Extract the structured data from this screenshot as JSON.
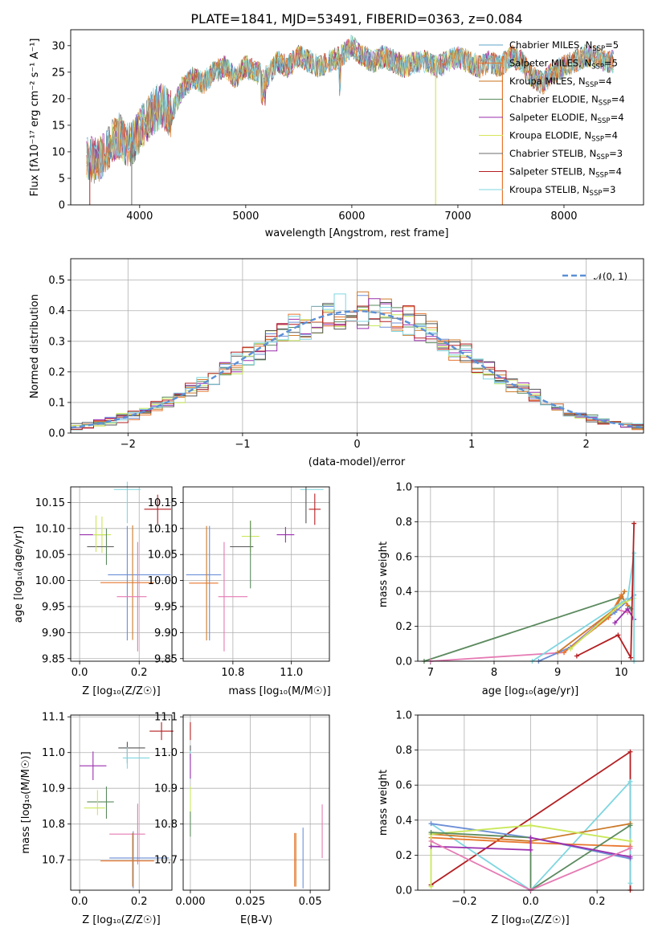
{
  "title": "PLATE=1841, MJD=53491, FIBERID=0363, z=0.084",
  "series_colors": [
    "#5fa3cb",
    "#e8762e",
    "#c9711b",
    "#5b8a5e",
    "#9b2fae",
    "#d7e65a",
    "#6b6b6b",
    "#b41f22",
    "#7fd6e0"
  ],
  "panel_colors": [
    "#6c8fd6",
    "#e8762e",
    "#cc7a2a",
    "#5b8a5e",
    "#9b2fae",
    "#c9e85a",
    "#555555",
    "#b41f22",
    "#7fd6e0",
    "#e57ab3"
  ],
  "legend": {
    "labels": [
      "Chabrier MILES, N",
      "Salpeter MILES, N",
      "Kroupa MILES, N",
      "Chabrier ELODIE, N",
      "Salpeter ELODIE, N",
      "Kroupa ELODIE, N",
      "Chabrier STELIB, N",
      "Salpeter STELIB, N",
      "Kroupa STELIB, N"
    ],
    "sub": "SSP",
    "counts": [
      "5",
      "5",
      "4",
      "4",
      "4",
      "4",
      "3",
      "4",
      "3"
    ]
  },
  "chart_data": [
    {
      "id": "spectrum",
      "type": "line",
      "title": "PLATE=1841, MJD=53491, FIBERID=0363, z=0.084",
      "xlabel": "wavelength [Angstrom, rest frame]",
      "ylabel": "Flux [fλ10⁻¹⁷ erg cm⁻² s⁻¹ A⁻¹]",
      "xlim": [
        3350,
        8750
      ],
      "ylim": [
        0,
        33
      ],
      "xticks": [
        4000,
        5000,
        6000,
        7000,
        8000
      ],
      "yticks": [
        0,
        5,
        10,
        15,
        20,
        25,
        30
      ],
      "x": [
        3500,
        3600,
        3700,
        3800,
        3900,
        4000,
        4100,
        4200,
        4300,
        4400,
        4500,
        4600,
        4700,
        4800,
        4900,
        5000,
        5100,
        5200,
        5300,
        5400,
        5500,
        5600,
        5700,
        5800,
        5900,
        6000,
        6100,
        6200,
        6300,
        6400,
        6500,
        6600,
        6700,
        6800,
        6900,
        7000,
        7100,
        7200,
        7300,
        7400,
        7500,
        7600,
        7700,
        7800,
        7900,
        8000,
        8100,
        8200,
        8300,
        8400,
        8500
      ],
      "y": [
        9,
        8,
        11,
        13,
        11,
        14,
        17,
        19,
        17,
        22,
        24,
        23,
        25,
        26,
        24,
        26,
        25,
        24,
        27,
        26,
        28,
        27,
        26,
        27,
        28,
        30,
        28,
        27,
        28,
        27,
        26,
        27,
        27,
        26,
        27,
        28,
        27,
        26,
        27,
        26,
        28,
        27,
        24,
        23,
        25,
        26,
        27,
        28,
        28,
        27,
        27
      ]
    },
    {
      "id": "residuals",
      "type": "histogram",
      "xlabel": "(data-model)/error",
      "ylabel": "Normed distribution",
      "xlim": [
        -2.5,
        2.5
      ],
      "ylim": [
        0,
        0.57
      ],
      "xticks": [
        -2,
        -1,
        0,
        1,
        2
      ],
      "yticks": [
        0.0,
        0.1,
        0.2,
        0.3,
        0.4,
        0.5
      ],
      "legend": "𝒩(0, 1)",
      "curve": "normal(0,1)"
    },
    {
      "id": "age-vs-Z",
      "type": "errorbar",
      "xlabel": "Z [log₁₀(Z/Z☉)]",
      "ylabel": "age  [log₁₀(age/yr)]",
      "xlim": [
        -0.03,
        0.31
      ],
      "ylim": [
        9.845,
        10.18
      ],
      "xticks": [
        0.0,
        0.2
      ],
      "yticks": [
        9.85,
        9.9,
        9.95,
        10.0,
        10.05,
        10.1,
        10.15
      ],
      "points": [
        {
          "x": 0.155,
          "y": 10.175,
          "xe": 0.045,
          "ye": 0.0
        },
        {
          "x": 0.26,
          "y": 10.137,
          "xe": 0.045,
          "ye": 0.028
        },
        {
          "x": 0.045,
          "y": 10.088,
          "xe": 0.045,
          "ye": 0.015
        },
        {
          "x": 0.07,
          "y": 10.085,
          "xe": 0.045,
          "ye": 0.035
        },
        {
          "x": 0.07,
          "y": 10.065,
          "xe": 0.045,
          "ye": 0.0
        },
        {
          "x": 0.09,
          "y": 10.065,
          "xe": 0.0,
          "ye": 0.035
        },
        {
          "x": 0.195,
          "y": 10.011,
          "xe": 0.1,
          "ye": 0.0
        },
        {
          "x": 0.16,
          "y": 9.995,
          "xe": 0.0,
          "ye": 0.11
        },
        {
          "x": 0.16,
          "y": 9.996,
          "xe": 0.09,
          "ye": 0.0
        },
        {
          "x": 0.18,
          "y": 9.996,
          "xe": 0.0,
          "ye": 0.11
        },
        {
          "x": 0.19,
          "y": 9.969,
          "xe": 0.05,
          "ye": 0.105
        }
      ]
    },
    {
      "id": "age-vs-mass",
      "type": "errorbar",
      "xlabel": "mass [log₁₀(M/M☉)]",
      "xlim": [
        10.63,
        11.13
      ],
      "ylim": [
        9.845,
        10.18
      ],
      "xticks": [
        10.8,
        11.0
      ],
      "yticks": [
        9.85,
        9.9,
        9.95,
        10.0,
        10.05,
        10.1,
        10.15
      ]
    },
    {
      "id": "massweight-vs-age",
      "type": "line",
      "xlabel": "age  [log₁₀(age/yr)]",
      "ylabel": "mass weight",
      "xlim": [
        6.8,
        10.35
      ],
      "ylim": [
        0,
        1.0
      ],
      "xticks": [
        7,
        8,
        9,
        10
      ],
      "yticks": [
        0.0,
        0.2,
        0.4,
        0.6,
        0.8,
        1.0
      ]
    },
    {
      "id": "mass-vs-Z",
      "type": "errorbar",
      "xlabel": "Z [log₁₀(Z/Z☉)]",
      "ylabel": "mass [log₁₀(M/M☉)]",
      "xlim": [
        -0.03,
        0.31
      ],
      "ylim": [
        10.615,
        11.105
      ],
      "xticks": [
        0.0,
        0.2
      ],
      "yticks": [
        10.7,
        10.8,
        10.9,
        11.0,
        11.1
      ]
    },
    {
      "id": "mass-vs-EBV",
      "type": "errorbar",
      "xlabel": "E(B-V)",
      "xlim": [
        -0.003,
        0.058
      ],
      "ylim": [
        10.615,
        11.105
      ],
      "xticks": [
        0.0,
        0.025,
        0.05
      ],
      "yticks": [
        10.7,
        10.8,
        10.9,
        11.0,
        11.1
      ]
    },
    {
      "id": "massweight-vs-Z",
      "type": "line",
      "xlabel": "Z [log₁₀(Z/Z☉)]",
      "ylabel": "mass weight",
      "xlim": [
        -0.34,
        0.34
      ],
      "ylim": [
        0,
        1.0
      ],
      "xticks": [
        -0.2,
        0.0,
        0.2
      ],
      "yticks": [
        0.0,
        0.2,
        0.4,
        0.6,
        0.8,
        1.0
      ]
    }
  ]
}
